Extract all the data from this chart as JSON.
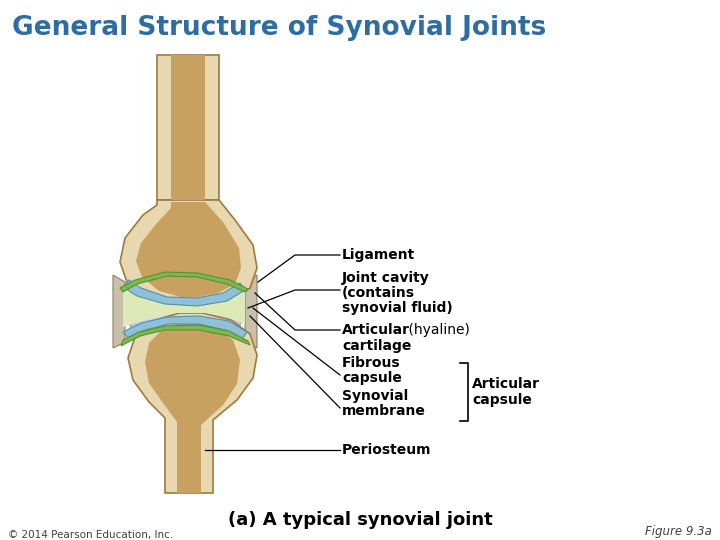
{
  "title": "General Structure of Synovial Joints",
  "title_color": "#2E6DA4",
  "title_fontsize": 19,
  "title_fontweight": "bold",
  "bg_color": "#ffffff",
  "subtitle": "(a) A typical synovial joint",
  "subtitle_fontsize": 13,
  "subtitle_fontweight": "bold",
  "copyright": "© 2014 Pearson Education, Inc.",
  "figure_label": "Figure 9.3a",
  "bone_outer": "#E8D8B0",
  "bone_cortical": "#D4C090",
  "bone_spongy": "#C8A060",
  "bone_dark": "#A07840",
  "capsule_outer_color": "#C8C0D8",
  "capsule_inner_color": "#D8D0E8",
  "cartilage_blue": "#90C0D8",
  "cartilage_green": "#80B060",
  "joint_fluid": "#E8EDD0",
  "ligament_color": "#C8C0A0"
}
